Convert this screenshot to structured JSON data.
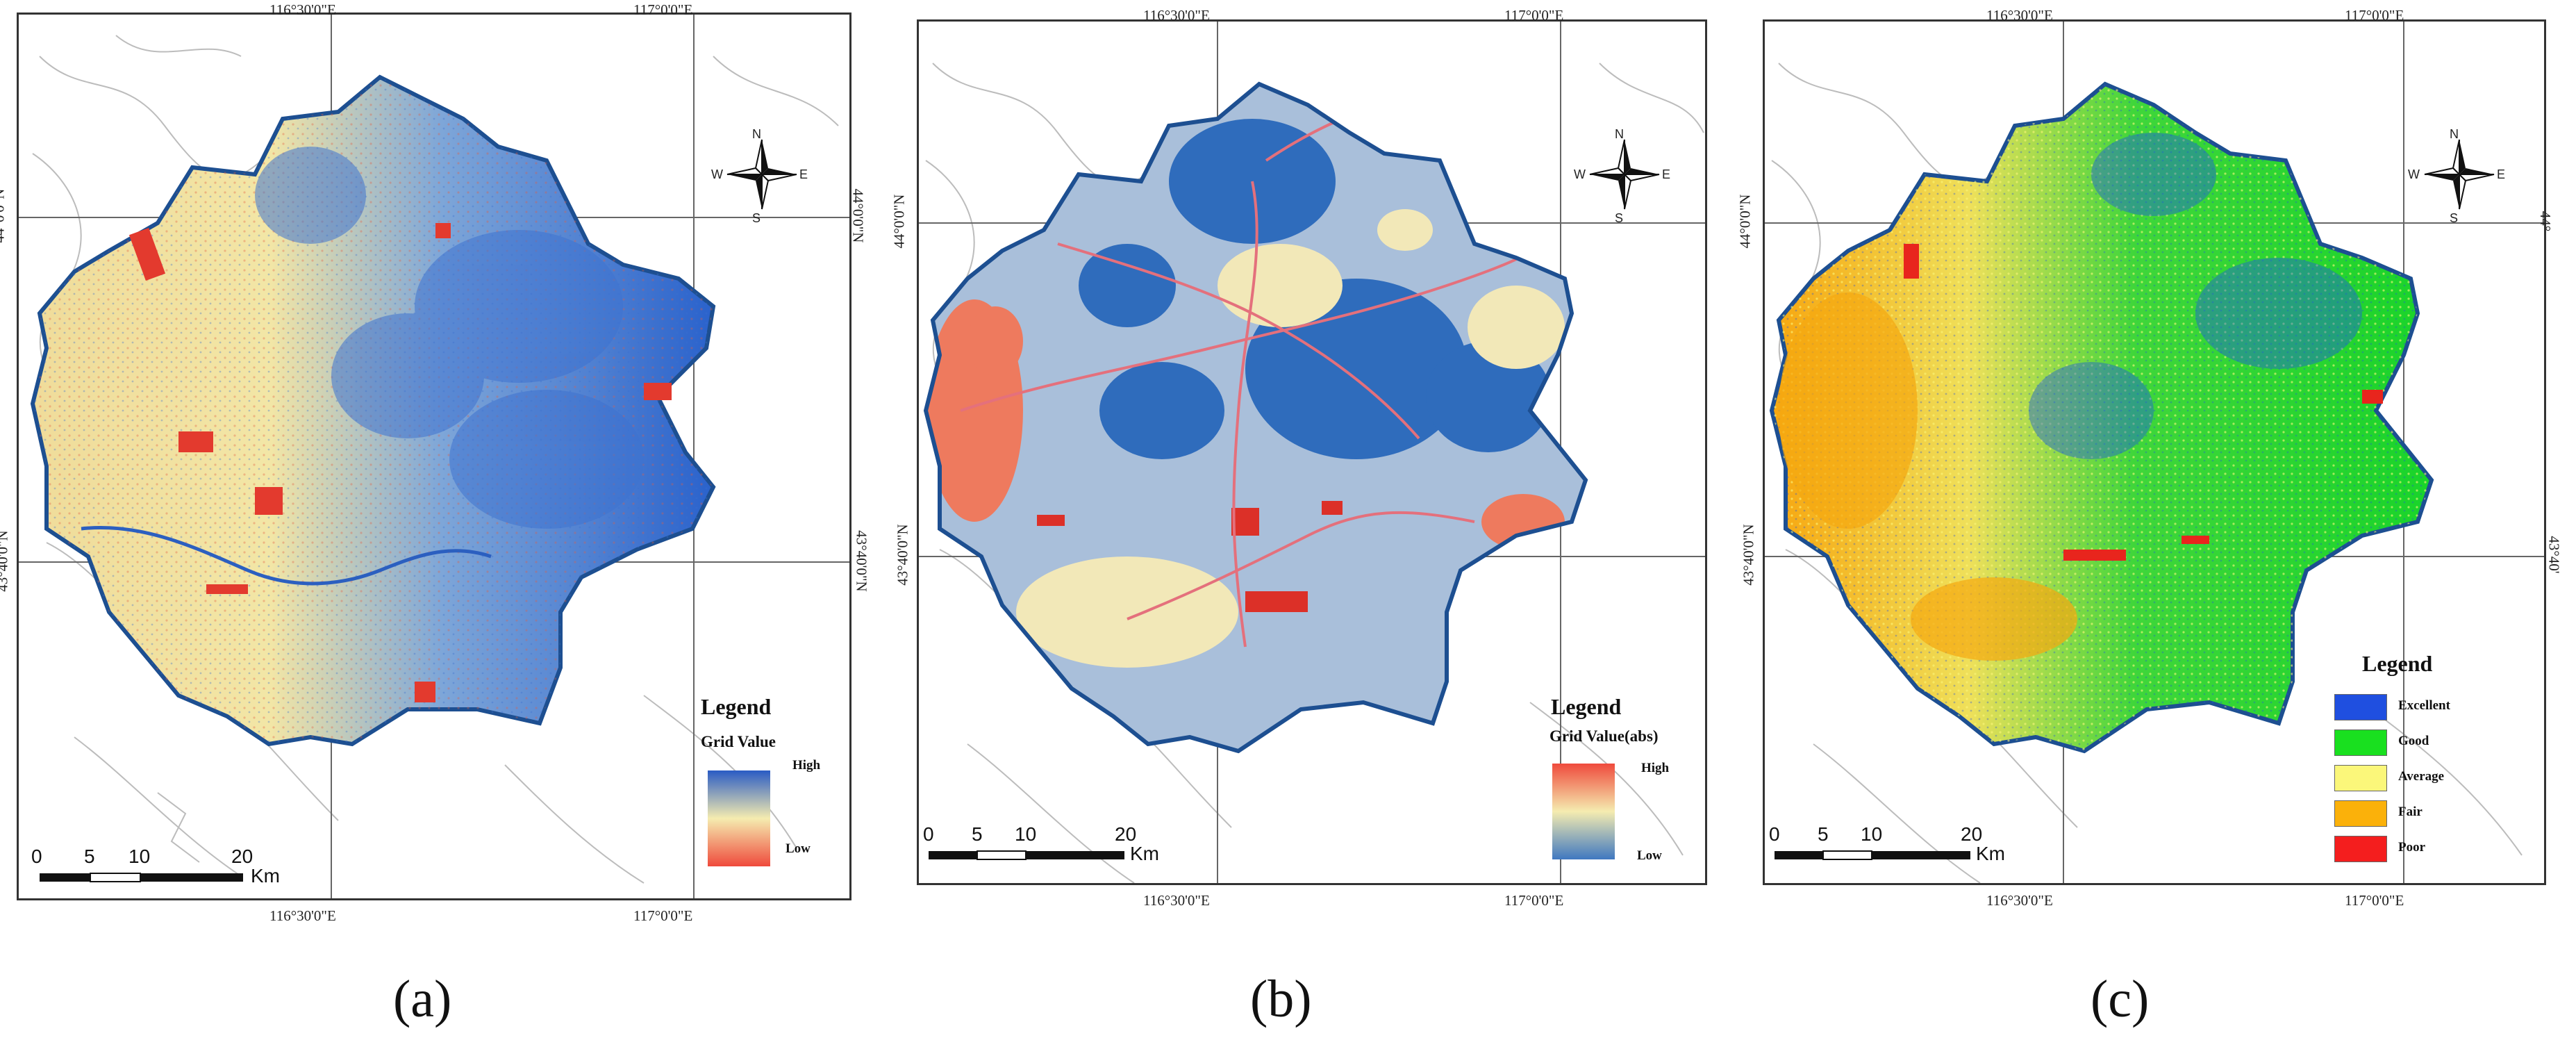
{
  "coords": {
    "lon1": "116°30'0\"E",
    "lon2": "117°0'0\"E",
    "lat1": "44°0'0\"N",
    "lat2": "43°40'0\"N",
    "lat1_alt": "44°0'0\"N",
    "lat2_alt": "43°40'0\"N",
    "lat1_right_c": "44°",
    "lat2_right_c": "43°40'"
  },
  "compass": {
    "n": "N",
    "s": "S",
    "e": "E",
    "w": "W"
  },
  "scale": {
    "t0": "0",
    "t1": "5",
    "t2": "10",
    "t3": "20",
    "unit": "Km"
  },
  "panels": [
    {
      "id": "a",
      "caption": "(a)",
      "legend_title": "Legend",
      "legend_subtitle": "Grid Value",
      "legend_high": "High",
      "legend_low": "Low",
      "ramp_colors": [
        "#2a5bc4",
        "#f5ecb0",
        "#ef4a3c"
      ]
    },
    {
      "id": "b",
      "caption": "(b)",
      "legend_title": "Legend",
      "legend_subtitle": "Grid Value(abs)",
      "legend_high": "High",
      "legend_low": "Low",
      "ramp_colors": [
        "#ef4a3c",
        "#f5ecb0",
        "#3f78c0"
      ]
    },
    {
      "id": "c",
      "caption": "(c)",
      "legend_title": "Legend",
      "classes": [
        {
          "label": "Excellent",
          "color": "#1f4fe0"
        },
        {
          "label": "Good",
          "color": "#19e01f"
        },
        {
          "label": "Average",
          "color": "#fbf77a"
        },
        {
          "label": "Fair",
          "color": "#fbb10a"
        },
        {
          "label": "Poor",
          "color": "#f41e1e"
        }
      ]
    }
  ],
  "colors": {
    "boundary": "#1d4f91",
    "grid": "#666666",
    "roads": "#e4707c",
    "basemap": "#bbbbbb"
  }
}
